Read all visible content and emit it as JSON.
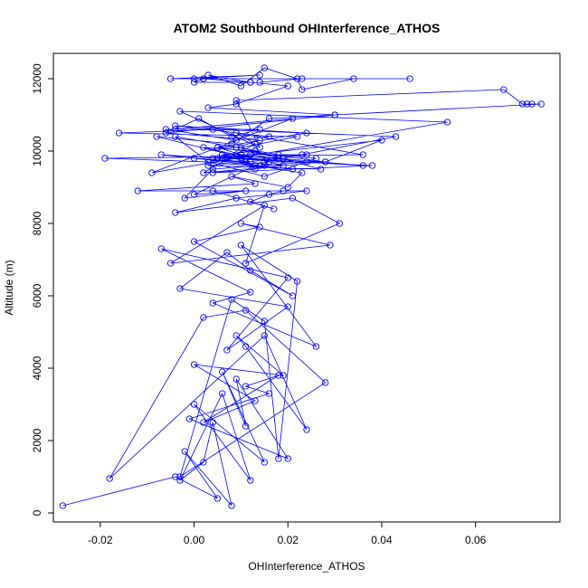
{
  "chart_data": {
    "type": "line",
    "title": "ATOM2 Southbound OHInterference_ATHOS",
    "xlabel": "OHInterference_ATHOS",
    "ylabel": "Altitude (m)",
    "xlim": [
      -0.03,
      0.078
    ],
    "ylim": [
      -250,
      12700
    ],
    "xticks": [
      -0.02,
      0.0,
      0.02,
      0.04,
      0.06
    ],
    "xtick_labels": [
      "-0.02",
      "0.00",
      "0.02",
      "0.04",
      "0.06"
    ],
    "yticks": [
      0,
      2000,
      4000,
      6000,
      8000,
      10000,
      12000
    ],
    "ytick_labels": [
      "0",
      "2000",
      "4000",
      "6000",
      "8000",
      "10000",
      "12000"
    ],
    "grid": false,
    "marker": "open-circle",
    "series_color": "#0000ff",
    "series": [
      {
        "x": [
          -0.028,
          -0.004,
          0.005,
          -0.002,
          0.008,
          0.004,
          0.002,
          -0.003,
          0.006,
          0.012,
          0.0,
          0.015,
          0.006,
          0.011,
          0.009,
          0.02,
          -0.001,
          0.016,
          0.011,
          0.018,
          0.002,
          0.013,
          0.0,
          0.019,
          0.009,
          0.011,
          0.024,
          0.015,
          -0.018,
          0.002,
          0.011,
          0.028,
          -0.003,
          0.008,
          0.015,
          0.018,
          0.022,
          0.01,
          0.026,
          0.004,
          0.012,
          -0.007,
          0.02,
          0.007,
          0.02,
          -0.003,
          0.007,
          0.012,
          0.021,
          -0.0,
          0.014,
          0.01,
          0.029,
          -0.005,
          0.015,
          0.011,
          0.031,
          0.021,
          -0.004,
          0.009,
          0.024,
          0.004,
          0.017,
          0.012,
          0.016,
          0.019,
          -0.012,
          0.013,
          0.008,
          0.02,
          0.023,
          0.013,
          0.0,
          0.011,
          -0.002,
          0.004,
          0.014,
          0.005,
          -0.007,
          0.021,
          0.003,
          0.015,
          0.026,
          0.018,
          -0.004,
          0.003,
          -0.019,
          0.036,
          0.009,
          0.013,
          0.002,
          0.028,
          0.04,
          0.012,
          0.004,
          0.023,
          0.019,
          0.011,
          0.006,
          0.013,
          0.002,
          0.016,
          0.019,
          0.0,
          0.012,
          0.003,
          0.027,
          0.013,
          0.01,
          0.036,
          0.009,
          0.024,
          0.015,
          0.013,
          0.004,
          0.038,
          0.006,
          0.018,
          0.01,
          0.022,
          -0.016,
          0.004,
          0.043,
          0.015,
          0.028,
          0.005,
          0.01,
          0.024,
          0.006,
          0.011,
          -0.008,
          0.008,
          0.016,
          0.03,
          -0.006,
          0.014,
          0.009,
          0.005,
          0.024,
          -0.004,
          0.016,
          0.009,
          -0.006,
          0.014,
          0.008,
          0.001,
          -0.004,
          0.021,
          -0.009,
          0.054,
          -0.003,
          0.014,
          0.009,
          0.066,
          0.07,
          0.071,
          0.072,
          0.074,
          0.03,
          0.003,
          0.009,
          0.02,
          0.012,
          0.0,
          0.002,
          0.012,
          0.003,
          0.01,
          0.015,
          0.022,
          0.023,
          0.034,
          0.046,
          0.0,
          0.014,
          -0.005,
          0.002,
          0.023,
          0.014
        ],
        "y": [
          200,
          1000,
          400,
          1700,
          200,
          2500,
          1400,
          900,
          3300,
          900,
          3000,
          1400,
          3900,
          2400,
          3700,
          1500,
          2600,
          3300,
          3500,
          3800,
          2500,
          3100,
          4100,
          3800,
          4900,
          4600,
          2300,
          4900,
          950,
          5400,
          5600,
          3600,
          1000,
          5900,
          5300,
          1500,
          6400,
          7400,
          4600,
          5800,
          6100,
          7300,
          6500,
          4500,
          5700,
          6200,
          7200,
          6700,
          6000,
          7500,
          7900,
          8000,
          7400,
          6900,
          8500,
          6900,
          8000,
          8700,
          8300,
          8700,
          8900,
          8900,
          8400,
          8600,
          8800,
          8900,
          8900,
          9100,
          9300,
          9000,
          9400,
          9600,
          8800,
          8900,
          8700,
          9500,
          9600,
          9800,
          9900,
          9500,
          9700,
          9300,
          9800,
          9900,
          10400,
          9700,
          9800,
          9900,
          10500,
          10200,
          9400,
          9700,
          10300,
          9900,
          9800,
          9900,
          9800,
          9700,
          9900,
          10000,
          10100,
          9700,
          9600,
          9800,
          9700,
          9600,
          9500,
          10000,
          9800,
          9600,
          9900,
          9700,
          9600,
          9500,
          9400,
          9600,
          9800,
          9800,
          10100,
          10400,
          10500,
          10600,
          10400,
          9700,
          9700,
          10100,
          9900,
          9900,
          9900,
          9800,
          10400,
          10200,
          10900,
          11000,
          10500,
          10300,
          10100,
          10100,
          10500,
          10700,
          10400,
          10300,
          10600,
          10600,
          10400,
          10900,
          10600,
          10900,
          9400,
          10800,
          11100,
          10100,
          11400,
          11700,
          11300,
          11300,
          11300,
          11300,
          11000,
          11200,
          11300,
          11800,
          11900,
          11900,
          12000,
          11900,
          12100,
          11800,
          12300,
          12000,
          11700,
          12000,
          12000,
          12000,
          12100,
          12000,
          12000,
          12000,
          11900
        ]
      }
    ]
  }
}
